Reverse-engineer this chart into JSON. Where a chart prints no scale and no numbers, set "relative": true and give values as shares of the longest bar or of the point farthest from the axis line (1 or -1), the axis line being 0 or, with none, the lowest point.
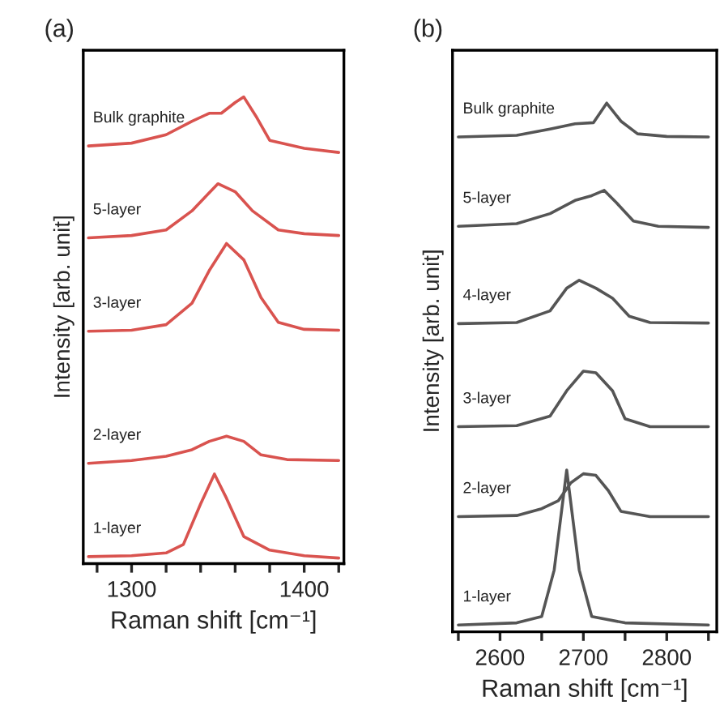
{
  "chart_data": [
    {
      "type": "line",
      "title": "(a)",
      "xlabel": "Raman shift [cm⁻¹]",
      "ylabel": "Intensity [arb. unit]",
      "relative": true,
      "tick_labels": "x",
      "grid": false,
      "legend": false,
      "marker": "none",
      "line_style": "solid",
      "xlim": [
        1272,
        1423
      ],
      "xticks": [
        {
          "value": 1280,
          "label": null
        },
        1300,
        {
          "value": 1320,
          "label": null
        },
        {
          "value": 1340,
          "label": null
        },
        {
          "value": 1360,
          "label": null
        },
        {
          "value": 1380,
          "label": null
        },
        1400,
        {
          "value": 1420,
          "label": null
        }
      ],
      "series": [
        {
          "name": "1-layer",
          "color": "#d9534f",
          "x": [
            1275,
            1300,
            1320,
            1330,
            1340,
            1348,
            1355,
            1365,
            1380,
            1400,
            1420
          ],
          "values": [
            0.015,
            0.017,
            0.023,
            0.041,
            0.128,
            0.192,
            0.14,
            0.058,
            0.029,
            0.017,
            0.012
          ]
        },
        {
          "name": "2-layer",
          "color": "#d9534f",
          "x": [
            1275,
            1300,
            1320,
            1335,
            1345,
            1355,
            1365,
            1375,
            1390,
            1420
          ],
          "values": [
            0.215,
            0.221,
            0.23,
            0.244,
            0.262,
            0.273,
            0.262,
            0.233,
            0.223,
            0.221
          ]
        },
        {
          "name": "3-layer",
          "color": "#d9534f",
          "x": [
            1275,
            1300,
            1320,
            1335,
            1345,
            1355,
            1365,
            1375,
            1385,
            1400,
            1420
          ],
          "values": [
            0.498,
            0.5,
            0.512,
            0.558,
            0.628,
            0.686,
            0.651,
            0.57,
            0.517,
            0.502,
            0.5
          ]
        },
        {
          "name": "5-layer",
          "color": "#d9534f",
          "x": [
            1275,
            1300,
            1320,
            1335,
            1350,
            1360,
            1370,
            1385,
            1400,
            1420
          ],
          "values": [
            0.698,
            0.703,
            0.715,
            0.756,
            0.814,
            0.797,
            0.756,
            0.715,
            0.707,
            0.703
          ]
        },
        {
          "name": "Bulk graphite",
          "color": "#d9534f",
          "x": [
            1275,
            1300,
            1320,
            1335,
            1345,
            1352,
            1360,
            1365,
            1372,
            1380,
            1400,
            1420
          ],
          "values": [
            0.895,
            0.901,
            0.919,
            0.948,
            0.965,
            0.965,
            0.988,
            1.0,
            0.959,
            0.907,
            0.89,
            0.881
          ]
        }
      ]
    },
    {
      "type": "line",
      "title": "(b)",
      "xlabel": "Raman shift [cm⁻¹]",
      "ylabel": "Intensity [arb. unit]",
      "relative": true,
      "tick_labels": "x",
      "grid": false,
      "legend": false,
      "marker": "none",
      "line_style": "solid",
      "xlim": [
        2543,
        2860
      ],
      "xticks": [
        {
          "value": 2550,
          "label": null
        },
        2600,
        {
          "value": 2650,
          "label": null
        },
        2700,
        {
          "value": 2750,
          "label": null
        },
        2800,
        {
          "value": 2850,
          "label": null
        }
      ],
      "series": [
        {
          "name": "1-layer",
          "color": "#555555",
          "x": [
            2550,
            2620,
            2650,
            2665,
            2680,
            2695,
            2710,
            2750,
            2850
          ],
          "values": [
            0.013,
            0.017,
            0.029,
            0.117,
            0.306,
            0.117,
            0.029,
            0.017,
            0.013
          ]
        },
        {
          "name": "2-layer",
          "color": "#555555",
          "x": [
            2550,
            2620,
            2650,
            2670,
            2685,
            2700,
            2715,
            2730,
            2745,
            2780,
            2850
          ],
          "values": [
            0.218,
            0.22,
            0.233,
            0.248,
            0.282,
            0.299,
            0.296,
            0.267,
            0.228,
            0.218,
            0.218
          ]
        },
        {
          "name": "3-layer",
          "color": "#555555",
          "x": [
            2550,
            2620,
            2660,
            2680,
            2700,
            2715,
            2735,
            2750,
            2780,
            2850
          ],
          "values": [
            0.388,
            0.39,
            0.408,
            0.456,
            0.493,
            0.49,
            0.456,
            0.403,
            0.388,
            0.388
          ]
        },
        {
          "name": "4-layer",
          "color": "#555555",
          "x": [
            2550,
            2620,
            2660,
            2680,
            2695,
            2715,
            2735,
            2755,
            2780,
            2850
          ],
          "values": [
            0.583,
            0.585,
            0.607,
            0.65,
            0.665,
            0.65,
            0.631,
            0.597,
            0.585,
            0.584
          ]
        },
        {
          "name": "5-layer",
          "color": "#555555",
          "x": [
            2550,
            2620,
            2660,
            2690,
            2710,
            2725,
            2740,
            2760,
            2790,
            2850
          ],
          "values": [
            0.767,
            0.772,
            0.791,
            0.816,
            0.825,
            0.835,
            0.811,
            0.777,
            0.767,
            0.765
          ]
        },
        {
          "name": "Bulk graphite",
          "color": "#555555",
          "x": [
            2550,
            2620,
            2660,
            2690,
            2712,
            2728,
            2745,
            2765,
            2800,
            2850
          ],
          "values": [
            0.936,
            0.939,
            0.951,
            0.961,
            0.963,
            1.0,
            0.966,
            0.942,
            0.937,
            0.936
          ]
        }
      ]
    }
  ]
}
